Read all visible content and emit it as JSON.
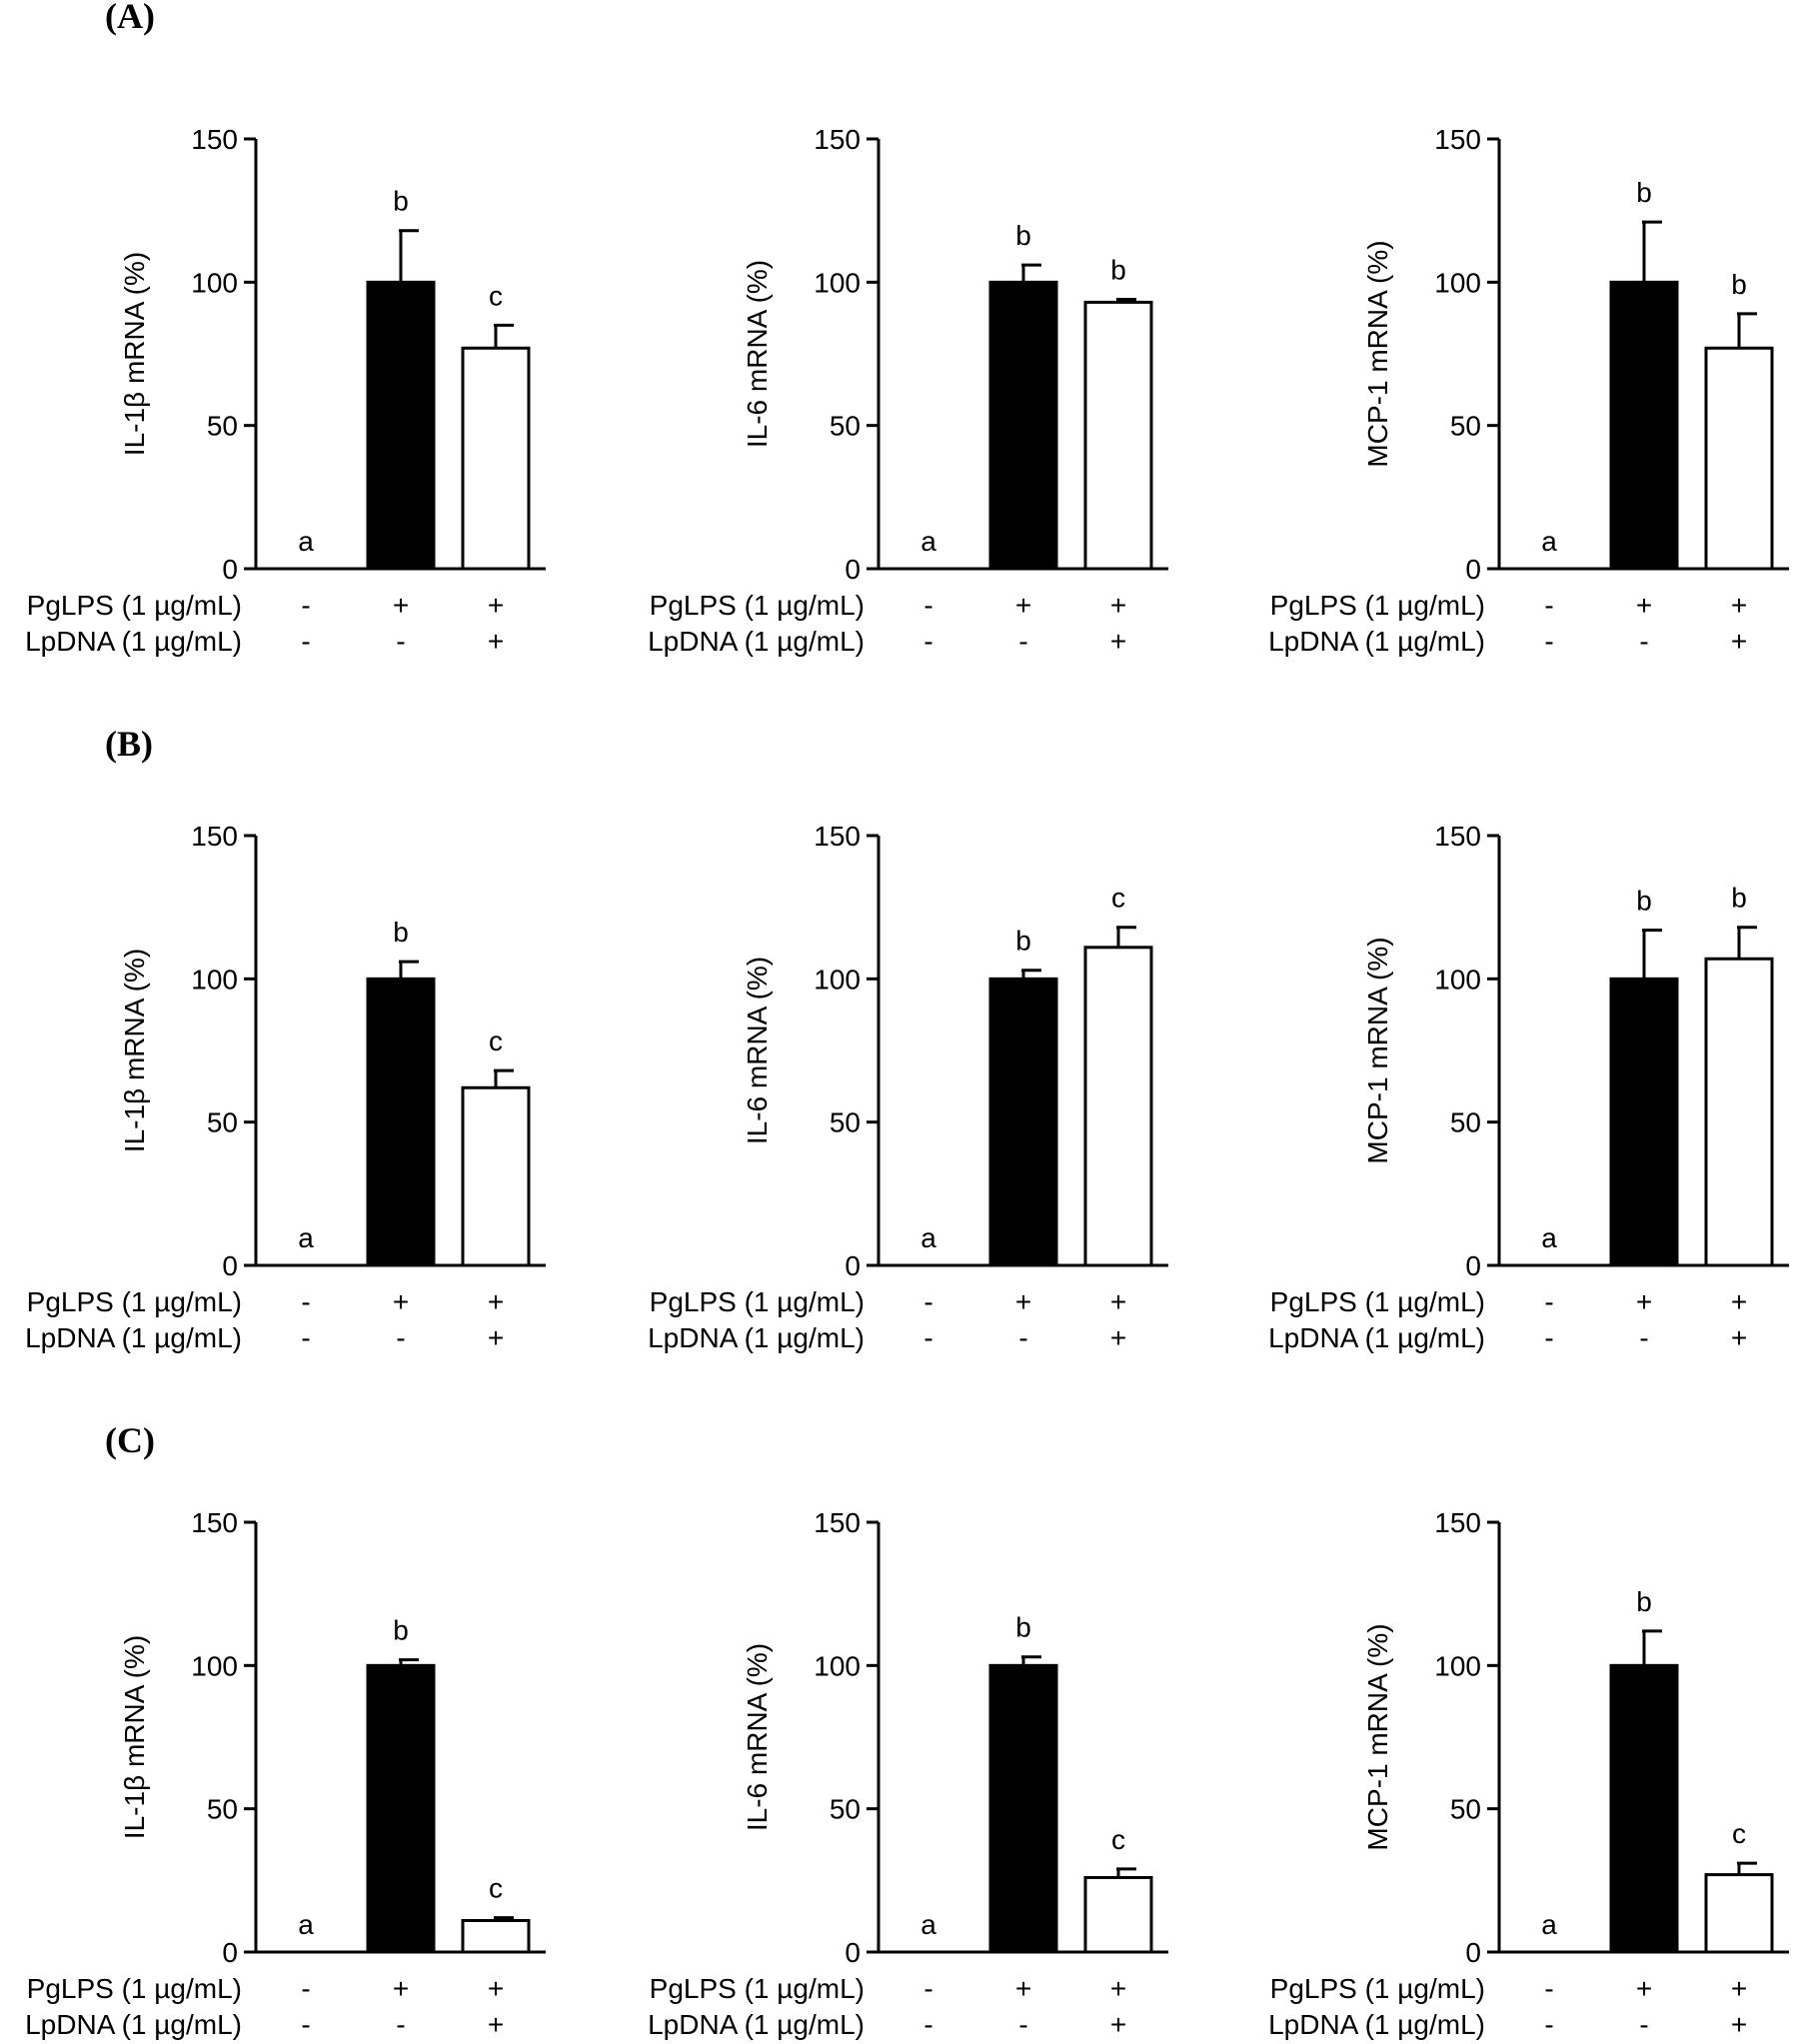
{
  "figure": {
    "panels": [
      {
        "label": "(A)"
      },
      {
        "label": "(B)"
      },
      {
        "label": "(C)"
      }
    ],
    "condition_labels": [
      "PgLPS (1 µg/mL)",
      "LpDNA (1 µg/mL)"
    ],
    "conditions": [
      [
        "-",
        "+",
        "+"
      ],
      [
        "-",
        "-",
        "+"
      ]
    ]
  },
  "chart_data": [
    {
      "type": "bar",
      "panel": "(A)",
      "ylabel": "IL-1β mRNA (%)",
      "ylim": [
        0,
        150
      ],
      "yticks": [
        0,
        50,
        100,
        150
      ],
      "values": [
        0,
        100,
        77
      ],
      "errors": [
        0,
        18,
        8
      ],
      "significance": [
        "a",
        "b",
        "c"
      ],
      "bar_colors": [
        "#000000",
        "#000000",
        "#ffffff"
      ]
    },
    {
      "type": "bar",
      "panel": "(A)",
      "ylabel": "IL-6 mRNA (%)",
      "ylim": [
        0,
        150
      ],
      "yticks": [
        0,
        50,
        100,
        150
      ],
      "values": [
        0,
        100,
        93
      ],
      "errors": [
        0,
        6,
        1
      ],
      "significance": [
        "a",
        "b",
        "b"
      ],
      "bar_colors": [
        "#000000",
        "#000000",
        "#ffffff"
      ]
    },
    {
      "type": "bar",
      "panel": "(A)",
      "ylabel": "MCP-1 mRNA (%)",
      "ylim": [
        0,
        150
      ],
      "yticks": [
        0,
        50,
        100,
        150
      ],
      "values": [
        0,
        100,
        77
      ],
      "errors": [
        0,
        21,
        12
      ],
      "significance": [
        "a",
        "b",
        "b"
      ],
      "bar_colors": [
        "#000000",
        "#000000",
        "#ffffff"
      ]
    },
    {
      "type": "bar",
      "panel": "(B)",
      "ylabel": "IL-1β mRNA (%)",
      "ylim": [
        0,
        150
      ],
      "yticks": [
        0,
        50,
        100,
        150
      ],
      "values": [
        0,
        100,
        62
      ],
      "errors": [
        0,
        6,
        6
      ],
      "significance": [
        "a",
        "b",
        "c"
      ],
      "bar_colors": [
        "#000000",
        "#000000",
        "#ffffff"
      ]
    },
    {
      "type": "bar",
      "panel": "(B)",
      "ylabel": "IL-6 mRNA (%)",
      "ylim": [
        0,
        150
      ],
      "yticks": [
        0,
        50,
        100,
        150
      ],
      "values": [
        0,
        100,
        111
      ],
      "errors": [
        0,
        3,
        7
      ],
      "significance": [
        "a",
        "b",
        "c"
      ],
      "bar_colors": [
        "#000000",
        "#000000",
        "#ffffff"
      ]
    },
    {
      "type": "bar",
      "panel": "(B)",
      "ylabel": "MCP-1 mRNA (%)",
      "ylim": [
        0,
        150
      ],
      "yticks": [
        0,
        50,
        100,
        150
      ],
      "values": [
        0,
        100,
        107
      ],
      "errors": [
        0,
        17,
        11
      ],
      "significance": [
        "a",
        "b",
        "b"
      ],
      "bar_colors": [
        "#000000",
        "#000000",
        "#ffffff"
      ]
    },
    {
      "type": "bar",
      "panel": "(C)",
      "ylabel": "IL-1β mRNA (%)",
      "ylim": [
        0,
        150
      ],
      "yticks": [
        0,
        50,
        100,
        150
      ],
      "values": [
        0,
        100,
        11
      ],
      "errors": [
        0,
        2,
        1
      ],
      "significance": [
        "a",
        "b",
        "c"
      ],
      "bar_colors": [
        "#000000",
        "#000000",
        "#ffffff"
      ]
    },
    {
      "type": "bar",
      "panel": "(C)",
      "ylabel": "IL-6 mRNA (%)",
      "ylim": [
        0,
        150
      ],
      "yticks": [
        0,
        50,
        100,
        150
      ],
      "values": [
        0,
        100,
        26
      ],
      "errors": [
        0,
        3,
        3
      ],
      "significance": [
        "a",
        "b",
        "c"
      ],
      "bar_colors": [
        "#000000",
        "#000000",
        "#ffffff"
      ]
    },
    {
      "type": "bar",
      "panel": "(C)",
      "ylabel": "MCP-1 mRNA (%)",
      "ylim": [
        0,
        150
      ],
      "yticks": [
        0,
        50,
        100,
        150
      ],
      "values": [
        0,
        100,
        27
      ],
      "errors": [
        0,
        12,
        4
      ],
      "significance": [
        "a",
        "b",
        "c"
      ],
      "bar_colors": [
        "#000000",
        "#000000",
        "#ffffff"
      ]
    }
  ]
}
